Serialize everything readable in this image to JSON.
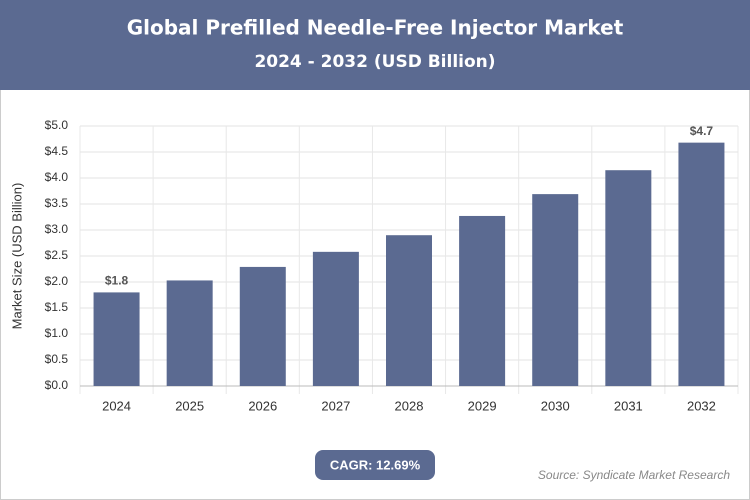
{
  "chart_data": {
    "type": "bar",
    "title": "Global Prefilled Needle-Free Injector Market",
    "subtitle": "2024 - 2032 (USD Billion)",
    "y_label": "Market Size (USD Billion)",
    "categories": [
      "2024",
      "2025",
      "2026",
      "2027",
      "2028",
      "2029",
      "2030",
      "2031",
      "2032"
    ],
    "values": [
      1.8,
      2.03,
      2.29,
      2.58,
      2.9,
      3.27,
      3.69,
      4.15,
      4.68
    ],
    "value_labels": [
      "$1.8",
      null,
      null,
      null,
      null,
      null,
      null,
      null,
      "$4.7"
    ],
    "color": "#5b6a91",
    "ylim": [
      0,
      5
    ],
    "yticks": [
      {
        "value": 0,
        "label": "$0.0"
      },
      {
        "value": 0.5,
        "label": "$0.5"
      },
      {
        "value": 1,
        "label": "$1.0"
      },
      {
        "value": 1.5,
        "label": "$1.5"
      },
      {
        "value": 2,
        "label": "$2.0"
      },
      {
        "value": 2.5,
        "label": "$2.5"
      },
      {
        "value": 3,
        "label": "$3.0"
      },
      {
        "value": 3.5,
        "label": "$3.5"
      },
      {
        "value": 4,
        "label": "$4.0"
      },
      {
        "value": 4.5,
        "label": "$4.5"
      },
      {
        "value": 5,
        "label": "$5.0"
      }
    ],
    "grid": true,
    "cagr": "CAGR: 12.69%",
    "source": "Source: Syndicate Market Research"
  }
}
